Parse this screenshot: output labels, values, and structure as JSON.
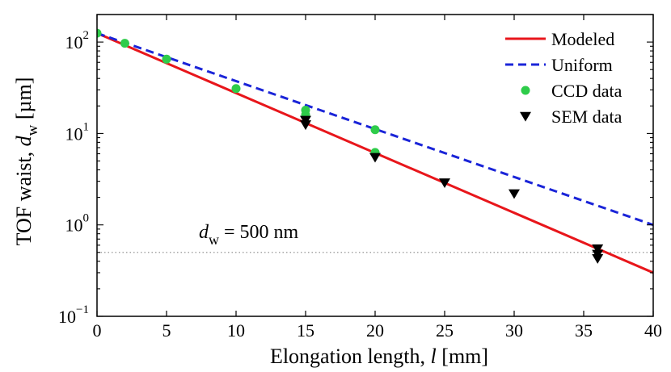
{
  "chart_data": {
    "type": "line",
    "title": "",
    "xlabel_main": "Elongation length, ",
    "xlabel_var": "l",
    "xlabel_unit": " [mm]",
    "ylabel_main": "TOF waist, ",
    "ylabel_var": "d",
    "ylabel_sub": "w",
    "ylabel_unit": " [µm]",
    "xlim": [
      0,
      40
    ],
    "ylim": [
      0.1,
      200
    ],
    "yscale": "log",
    "grid": false,
    "legend_position": "top-right",
    "x_ticks": [
      0,
      5,
      10,
      15,
      20,
      25,
      30,
      35,
      40
    ],
    "x_tick_labels": [
      "0",
      "5",
      "10",
      "15",
      "20",
      "25",
      "30",
      "35",
      "40"
    ],
    "y_ticks": [
      {
        "value": 0.1,
        "base": "10",
        "exp": "−1"
      },
      {
        "value": 1,
        "base": "10",
        "exp": "0"
      },
      {
        "value": 10,
        "base": "10",
        "exp": "1"
      },
      {
        "value": 100,
        "base": "10",
        "exp": "2"
      }
    ],
    "series": [
      {
        "name": "Modeled",
        "kind": "line",
        "color": "#e8161b",
        "dash": "solid",
        "x": [
          0,
          40
        ],
        "y": [
          125,
          0.3
        ]
      },
      {
        "name": "Uniform",
        "kind": "line",
        "color": "#1b25d8",
        "dash": "dashed",
        "x": [
          0,
          40
        ],
        "y": [
          125,
          1.0
        ]
      },
      {
        "name": "CCD data",
        "kind": "scatter",
        "marker": "circle",
        "color": "#2ecc4a",
        "x": [
          0,
          2,
          5,
          10,
          15,
          15,
          20,
          20
        ],
        "y": [
          125,
          97,
          65,
          31,
          18,
          16,
          11,
          6.2
        ]
      },
      {
        "name": "SEM data",
        "kind": "scatter",
        "marker": "triangle-down",
        "color": "#000000",
        "x": [
          15,
          15,
          20,
          25,
          30,
          36,
          36,
          36
        ],
        "y": [
          14,
          12.5,
          5.5,
          2.9,
          2.2,
          0.55,
          0.48,
          0.43
        ]
      }
    ],
    "reference_line": {
      "y": 0.5,
      "style": "dotted",
      "color": "#888888"
    },
    "annotation": {
      "var": "d",
      "sub": "w",
      "text": " = 500 nm"
    }
  }
}
